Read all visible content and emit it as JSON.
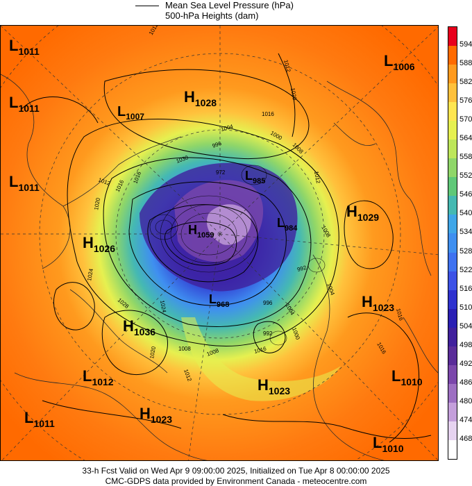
{
  "legend": {
    "line_label": "Mean Sea Level Pressure (hPa)",
    "shade_label": "500-hPa Heights (dam)"
  },
  "colorbar": {
    "levels": [
      "594",
      "588",
      "582",
      "576",
      "570",
      "564",
      "558",
      "552",
      "546",
      "540",
      "534",
      "528",
      "522",
      "516",
      "510",
      "504",
      "498",
      "492",
      "486",
      "480",
      "474",
      "468"
    ],
    "colors": [
      "#e8001c",
      "#ff6a00",
      "#ff9a1e",
      "#ffc13c",
      "#ffe650",
      "#e6f050",
      "#bde65a",
      "#8fd669",
      "#5fc878",
      "#45b9b2",
      "#3fa6e8",
      "#3f8ff0",
      "#3f72f0",
      "#3c52e6",
      "#2f32cf",
      "#2a1fb4",
      "#40209c",
      "#5a2c99",
      "#7b47ab",
      "#9d6fc2",
      "#c49fdb",
      "#e6d3f0",
      "#ffffff"
    ]
  },
  "pressure_systems": [
    {
      "type": "L",
      "value": "1011"
    },
    {
      "type": "L",
      "value": "1011"
    },
    {
      "type": "L",
      "value": "1011"
    },
    {
      "type": "L",
      "value": "1007"
    },
    {
      "type": "H",
      "value": "1028"
    },
    {
      "type": "L",
      "value": "1006"
    },
    {
      "type": "L",
      "value": "985"
    },
    {
      "type": "H",
      "value": "1029"
    },
    {
      "type": "H",
      "value": "1059"
    },
    {
      "type": "L",
      "value": "984"
    },
    {
      "type": "H",
      "value": "1026"
    },
    {
      "type": "H",
      "value": "1023"
    },
    {
      "type": "L",
      "value": "968"
    },
    {
      "type": "H",
      "value": "1036"
    },
    {
      "type": "L",
      "value": "1012"
    },
    {
      "type": "H",
      "value": "1023"
    },
    {
      "type": "L",
      "value": "1010"
    },
    {
      "type": "L",
      "value": "1011"
    },
    {
      "type": "H",
      "value": "1023"
    },
    {
      "type": "L",
      "value": "1010"
    }
  ],
  "isobar_labels": [
    "1012",
    "1012",
    "1020",
    "1016",
    "1004",
    "1000",
    "1016",
    "996",
    "1008",
    "1012",
    "1012",
    "1020",
    "1008",
    "1004",
    "1016",
    "1024",
    "1028",
    "1008",
    "1016",
    "1016",
    "992",
    "996",
    "1004",
    "1000",
    "992",
    "1020",
    "1016",
    "1012",
    "1008",
    "1024",
    "1030",
    "972"
  ],
  "footer": {
    "line1": "33-h Fcst Valid on Wed Apr  9 09:00:00 2025, Initialized on Tue Apr  8 00:00:00 2025",
    "line2": "CMC-GDPS data provided by Environment Canada - meteocentre.com"
  }
}
